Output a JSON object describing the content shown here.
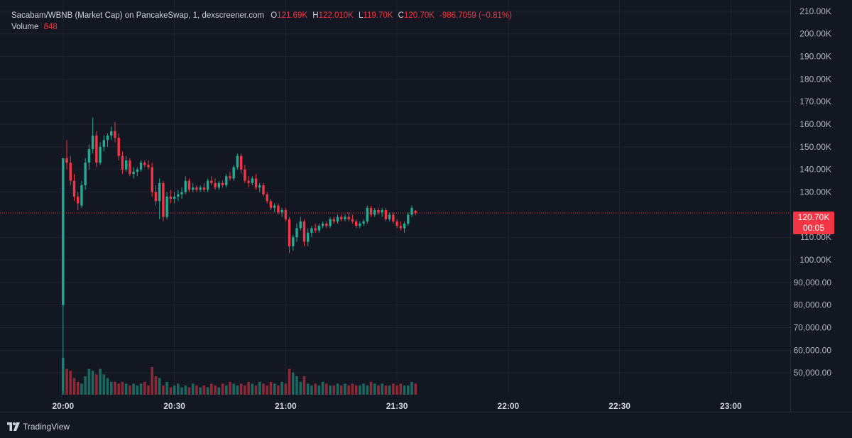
{
  "legend": {
    "symbol": "Sacabam/WBNB (Market Cap) on PancakeSwap, 1, dexscreener.com",
    "o_label": "O",
    "o_value": "121.69K",
    "h_label": "H",
    "h_value": "122.010K",
    "l_label": "L",
    "l_value": "119.70K",
    "c_label": "C",
    "c_value": "120.70K",
    "change": "-986.7059 (−0.81%)",
    "volume_label": "Volume",
    "volume_value": "848"
  },
  "price_tag": {
    "value": "120.70K",
    "countdown": "00:05"
  },
  "branding": {
    "logo_text": "TradingView"
  },
  "colors": {
    "background": "#131722",
    "grid": "#1f2430",
    "up": "#22ab94",
    "down": "#f23645",
    "text": "#b2b5be"
  },
  "chart_data": {
    "type": "candlestick",
    "title": "Sacabam/WBNB (Market Cap) on PancakeSwap, 1, dexscreener.com",
    "interval_minutes": 1,
    "x_range_minutes": [
      -17,
      196
    ],
    "ylim": [
      40000,
      215000
    ],
    "grid": true,
    "y_ticks": [
      {
        "value": 210000,
        "label": "210.00K"
      },
      {
        "value": 200000,
        "label": "200.00K"
      },
      {
        "value": 190000,
        "label": "190.00K"
      },
      {
        "value": 180000,
        "label": "180.00K"
      },
      {
        "value": 170000,
        "label": "170.00K"
      },
      {
        "value": 160000,
        "label": "160.00K"
      },
      {
        "value": 150000,
        "label": "150.00K"
      },
      {
        "value": 140000,
        "label": "140.00K"
      },
      {
        "value": 130000,
        "label": "130.00K"
      },
      {
        "value": 110000,
        "label": "110.00K"
      },
      {
        "value": 100000,
        "label": "100.00K"
      },
      {
        "value": 90000,
        "label": "90,000.00"
      },
      {
        "value": 80000,
        "label": "80,000.00"
      },
      {
        "value": 70000,
        "label": "70,000.00"
      },
      {
        "value": 60000,
        "label": "60,000.00"
      },
      {
        "value": 50000,
        "label": "50,000.00"
      }
    ],
    "x_ticks": [
      {
        "minute": 0,
        "label": "20:00"
      },
      {
        "minute": 30,
        "label": "20:30"
      },
      {
        "minute": 60,
        "label": "21:00"
      },
      {
        "minute": 90,
        "label": "21:30"
      },
      {
        "minute": 120,
        "label": "22:00"
      },
      {
        "minute": 150,
        "label": "22:30"
      },
      {
        "minute": 180,
        "label": "23:00"
      }
    ],
    "last_price": 120700,
    "candles": [
      {
        "t": 0,
        "o": 80000,
        "h": 145000,
        "l": 42000,
        "c": 145000
      },
      {
        "t": 1,
        "o": 145000,
        "h": 153000,
        "l": 140000,
        "c": 143000
      },
      {
        "t": 2,
        "o": 143000,
        "h": 146000,
        "l": 133000,
        "c": 135000
      },
      {
        "t": 3,
        "o": 135000,
        "h": 138000,
        "l": 126000,
        "c": 128000
      },
      {
        "t": 4,
        "o": 128000,
        "h": 130000,
        "l": 122000,
        "c": 125000
      },
      {
        "t": 5,
        "o": 124000,
        "h": 135000,
        "l": 123000,
        "c": 133000
      },
      {
        "t": 6,
        "o": 133000,
        "h": 145000,
        "l": 131000,
        "c": 143000
      },
      {
        "t": 7,
        "o": 143000,
        "h": 151000,
        "l": 140000,
        "c": 149000
      },
      {
        "t": 8,
        "o": 149000,
        "h": 163000,
        "l": 147000,
        "c": 155000
      },
      {
        "t": 9,
        "o": 155000,
        "h": 157000,
        "l": 141000,
        "c": 143000
      },
      {
        "t": 10,
        "o": 143000,
        "h": 152000,
        "l": 142000,
        "c": 150000
      },
      {
        "t": 11,
        "o": 150000,
        "h": 155000,
        "l": 148000,
        "c": 153000
      },
      {
        "t": 12,
        "o": 153000,
        "h": 156000,
        "l": 150000,
        "c": 155000
      },
      {
        "t": 13,
        "o": 155000,
        "h": 159000,
        "l": 153000,
        "c": 157000
      },
      {
        "t": 14,
        "o": 157000,
        "h": 161000,
        "l": 152000,
        "c": 154000
      },
      {
        "t": 15,
        "o": 154000,
        "h": 156000,
        "l": 144000,
        "c": 146000
      },
      {
        "t": 16,
        "o": 146000,
        "h": 148000,
        "l": 138000,
        "c": 140000
      },
      {
        "t": 17,
        "o": 140000,
        "h": 146000,
        "l": 139000,
        "c": 144000
      },
      {
        "t": 18,
        "o": 144000,
        "h": 145000,
        "l": 137000,
        "c": 138000
      },
      {
        "t": 19,
        "o": 138000,
        "h": 141000,
        "l": 136000,
        "c": 139000
      },
      {
        "t": 20,
        "o": 139000,
        "h": 141000,
        "l": 137000,
        "c": 140000
      },
      {
        "t": 21,
        "o": 140000,
        "h": 144000,
        "l": 139000,
        "c": 143000
      },
      {
        "t": 22,
        "o": 143000,
        "h": 144000,
        "l": 141000,
        "c": 142000
      },
      {
        "t": 23,
        "o": 142000,
        "h": 144000,
        "l": 140000,
        "c": 141000
      },
      {
        "t": 24,
        "o": 141000,
        "h": 143000,
        "l": 128000,
        "c": 130000
      },
      {
        "t": 25,
        "o": 130000,
        "h": 133000,
        "l": 124000,
        "c": 126000
      },
      {
        "t": 26,
        "o": 126000,
        "h": 136000,
        "l": 118000,
        "c": 134000
      },
      {
        "t": 27,
        "o": 134000,
        "h": 135000,
        "l": 117000,
        "c": 119000
      },
      {
        "t": 28,
        "o": 119000,
        "h": 130000,
        "l": 118000,
        "c": 128000
      },
      {
        "t": 29,
        "o": 128000,
        "h": 131000,
        "l": 125000,
        "c": 127000
      },
      {
        "t": 30,
        "o": 127000,
        "h": 130000,
        "l": 125000,
        "c": 128000
      },
      {
        "t": 31,
        "o": 128000,
        "h": 131000,
        "l": 126000,
        "c": 129000
      },
      {
        "t": 32,
        "o": 129000,
        "h": 132000,
        "l": 127000,
        "c": 130000
      },
      {
        "t": 33,
        "o": 130000,
        "h": 137000,
        "l": 129000,
        "c": 135000
      },
      {
        "t": 34,
        "o": 135000,
        "h": 136000,
        "l": 130000,
        "c": 131000
      },
      {
        "t": 35,
        "o": 131000,
        "h": 134000,
        "l": 130000,
        "c": 132000
      },
      {
        "t": 36,
        "o": 132000,
        "h": 133000,
        "l": 130000,
        "c": 131000
      },
      {
        "t": 37,
        "o": 131000,
        "h": 133000,
        "l": 130000,
        "c": 132000
      },
      {
        "t": 38,
        "o": 132000,
        "h": 134000,
        "l": 130000,
        "c": 131000
      },
      {
        "t": 39,
        "o": 131000,
        "h": 136000,
        "l": 130000,
        "c": 135000
      },
      {
        "t": 40,
        "o": 135000,
        "h": 137000,
        "l": 133000,
        "c": 134000
      },
      {
        "t": 41,
        "o": 134000,
        "h": 136000,
        "l": 131000,
        "c": 132000
      },
      {
        "t": 42,
        "o": 132000,
        "h": 135000,
        "l": 131000,
        "c": 134000
      },
      {
        "t": 43,
        "o": 134000,
        "h": 135000,
        "l": 132000,
        "c": 133000
      },
      {
        "t": 44,
        "o": 133000,
        "h": 138000,
        "l": 132000,
        "c": 137000
      },
      {
        "t": 45,
        "o": 137000,
        "h": 139000,
        "l": 135000,
        "c": 136000
      },
      {
        "t": 46,
        "o": 136000,
        "h": 142000,
        "l": 135000,
        "c": 141000
      },
      {
        "t": 47,
        "o": 141000,
        "h": 147000,
        "l": 140000,
        "c": 146000
      },
      {
        "t": 48,
        "o": 146000,
        "h": 147000,
        "l": 138000,
        "c": 140000
      },
      {
        "t": 49,
        "o": 140000,
        "h": 142000,
        "l": 134000,
        "c": 135000
      },
      {
        "t": 50,
        "o": 135000,
        "h": 137000,
        "l": 132000,
        "c": 134000
      },
      {
        "t": 51,
        "o": 134000,
        "h": 137000,
        "l": 133000,
        "c": 136000
      },
      {
        "t": 52,
        "o": 136000,
        "h": 138000,
        "l": 131000,
        "c": 132000
      },
      {
        "t": 53,
        "o": 132000,
        "h": 134000,
        "l": 130000,
        "c": 133000
      },
      {
        "t": 54,
        "o": 133000,
        "h": 134000,
        "l": 128000,
        "c": 129000
      },
      {
        "t": 55,
        "o": 129000,
        "h": 130000,
        "l": 125000,
        "c": 126000
      },
      {
        "t": 56,
        "o": 126000,
        "h": 127000,
        "l": 122000,
        "c": 123000
      },
      {
        "t": 57,
        "o": 123000,
        "h": 125000,
        "l": 121000,
        "c": 124000
      },
      {
        "t": 58,
        "o": 124000,
        "h": 125000,
        "l": 120000,
        "c": 121000
      },
      {
        "t": 59,
        "o": 121000,
        "h": 123000,
        "l": 119000,
        "c": 122000
      },
      {
        "t": 60,
        "o": 122000,
        "h": 123000,
        "l": 117000,
        "c": 118000
      },
      {
        "t": 61,
        "o": 118000,
        "h": 119000,
        "l": 103000,
        "c": 106000
      },
      {
        "t": 62,
        "o": 106000,
        "h": 111000,
        "l": 104000,
        "c": 110000
      },
      {
        "t": 63,
        "o": 110000,
        "h": 116000,
        "l": 108000,
        "c": 114000
      },
      {
        "t": 64,
        "o": 114000,
        "h": 119000,
        "l": 113000,
        "c": 117000
      },
      {
        "t": 65,
        "o": 117000,
        "h": 118000,
        "l": 106000,
        "c": 108000
      },
      {
        "t": 66,
        "o": 108000,
        "h": 114000,
        "l": 106000,
        "c": 112000
      },
      {
        "t": 67,
        "o": 112000,
        "h": 115000,
        "l": 110000,
        "c": 114000
      },
      {
        "t": 68,
        "o": 114000,
        "h": 116000,
        "l": 112000,
        "c": 113000
      },
      {
        "t": 69,
        "o": 113000,
        "h": 116000,
        "l": 112000,
        "c": 115000
      },
      {
        "t": 70,
        "o": 115000,
        "h": 117000,
        "l": 114000,
        "c": 116000
      },
      {
        "t": 71,
        "o": 116000,
        "h": 117000,
        "l": 114000,
        "c": 115000
      },
      {
        "t": 72,
        "o": 115000,
        "h": 119000,
        "l": 114000,
        "c": 118000
      },
      {
        "t": 73,
        "o": 118000,
        "h": 119000,
        "l": 116000,
        "c": 117000
      },
      {
        "t": 74,
        "o": 117000,
        "h": 120000,
        "l": 116000,
        "c": 119000
      },
      {
        "t": 75,
        "o": 119000,
        "h": 120000,
        "l": 117000,
        "c": 118000
      },
      {
        "t": 76,
        "o": 118000,
        "h": 120000,
        "l": 117000,
        "c": 119000
      },
      {
        "t": 77,
        "o": 119000,
        "h": 121000,
        "l": 117000,
        "c": 118000
      },
      {
        "t": 78,
        "o": 118000,
        "h": 120000,
        "l": 116000,
        "c": 117000
      },
      {
        "t": 79,
        "o": 117000,
        "h": 118000,
        "l": 114000,
        "c": 115000
      },
      {
        "t": 80,
        "o": 115000,
        "h": 117000,
        "l": 114000,
        "c": 116000
      },
      {
        "t": 81,
        "o": 116000,
        "h": 118000,
        "l": 115000,
        "c": 117000
      },
      {
        "t": 82,
        "o": 117000,
        "h": 124000,
        "l": 116000,
        "c": 123000
      },
      {
        "t": 83,
        "o": 123000,
        "h": 124000,
        "l": 119000,
        "c": 120000
      },
      {
        "t": 84,
        "o": 120000,
        "h": 123000,
        "l": 119000,
        "c": 122000
      },
      {
        "t": 85,
        "o": 122000,
        "h": 123000,
        "l": 120000,
        "c": 121000
      },
      {
        "t": 86,
        "o": 121000,
        "h": 123000,
        "l": 119000,
        "c": 122000
      },
      {
        "t": 87,
        "o": 122000,
        "h": 123000,
        "l": 117000,
        "c": 118000
      },
      {
        "t": 88,
        "o": 118000,
        "h": 121000,
        "l": 117000,
        "c": 120000
      },
      {
        "t": 89,
        "o": 120000,
        "h": 121000,
        "l": 116000,
        "c": 117000
      },
      {
        "t": 90,
        "o": 117000,
        "h": 118000,
        "l": 114000,
        "c": 115000
      },
      {
        "t": 91,
        "o": 115000,
        "h": 117000,
        "l": 113000,
        "c": 114000
      },
      {
        "t": 92,
        "o": 114000,
        "h": 117000,
        "l": 112000,
        "c": 116000
      },
      {
        "t": 93,
        "o": 116000,
        "h": 121000,
        "l": 115000,
        "c": 120000
      },
      {
        "t": 94,
        "o": 120000,
        "h": 124000,
        "l": 119000,
        "c": 123000
      },
      {
        "t": 95,
        "o": 121690,
        "h": 122010,
        "l": 119700,
        "c": 120700
      }
    ],
    "volumes": [
      40,
      28,
      26,
      18,
      14,
      12,
      20,
      28,
      26,
      22,
      28,
      22,
      18,
      14,
      14,
      12,
      14,
      12,
      10,
      12,
      10,
      12,
      14,
      10,
      30,
      20,
      18,
      10,
      14,
      8,
      10,
      12,
      8,
      10,
      8,
      12,
      10,
      8,
      10,
      8,
      12,
      10,
      8,
      12,
      10,
      14,
      12,
      10,
      12,
      10,
      14,
      12,
      10,
      14,
      12,
      10,
      14,
      12,
      10,
      14,
      12,
      28,
      24,
      20,
      14,
      20,
      12,
      10,
      12,
      10,
      14,
      12,
      10,
      10,
      12,
      10,
      12,
      10,
      12,
      10,
      10,
      12,
      10,
      14,
      12,
      10,
      12,
      10,
      10,
      12,
      10,
      12,
      10,
      10,
      14,
      12
    ]
  }
}
